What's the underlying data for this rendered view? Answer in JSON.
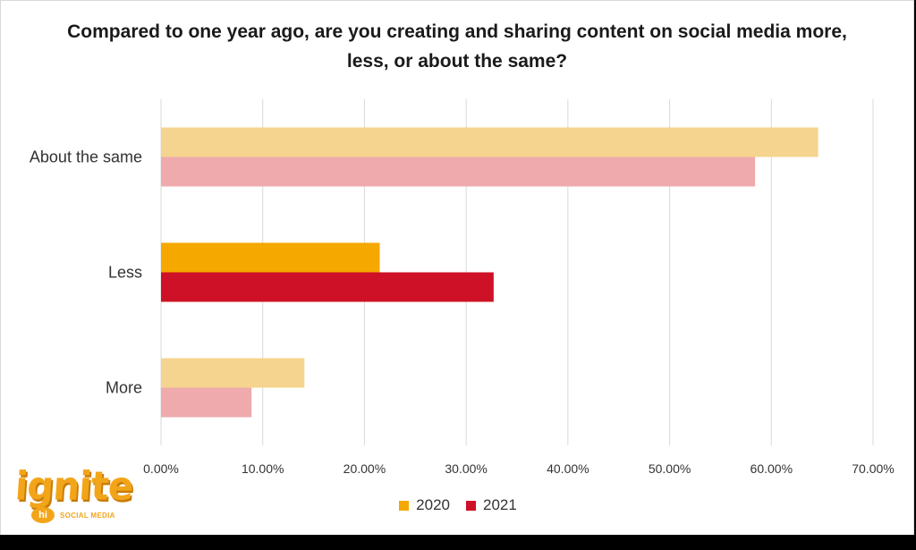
{
  "chart_data": {
    "type": "bar",
    "orientation": "horizontal",
    "title": "Compared to one year ago, are you creating and sharing content on social media more, less, or about the same?",
    "categories": [
      "About the same",
      "Less",
      "More"
    ],
    "series": [
      {
        "name": "2020",
        "values": [
          64.6,
          21.5,
          14.1
        ],
        "colors": [
          "#f5d48f",
          "#f5a800",
          "#f5d48f"
        ]
      },
      {
        "name": "2021",
        "values": [
          58.4,
          32.7,
          8.9
        ],
        "colors": [
          "#eeaaac",
          "#ce1126",
          "#eeaaac"
        ]
      }
    ],
    "xlim": [
      0,
      70
    ],
    "xticks": [
      0,
      10,
      20,
      30,
      40,
      50,
      60,
      70
    ],
    "xtick_labels": [
      "0.00%",
      "10.00%",
      "20.00%",
      "30.00%",
      "40.00%",
      "50.00%",
      "60.00%",
      "70.00%"
    ],
    "grid": true,
    "legend_position": "bottom-center",
    "legend": [
      {
        "label": "2020",
        "color": "#f5a800"
      },
      {
        "label": "2021",
        "color": "#ce1126"
      }
    ]
  },
  "logo": {
    "word": "ignite",
    "badge": "hi",
    "tagline": "SOCIAL MEDIA"
  }
}
